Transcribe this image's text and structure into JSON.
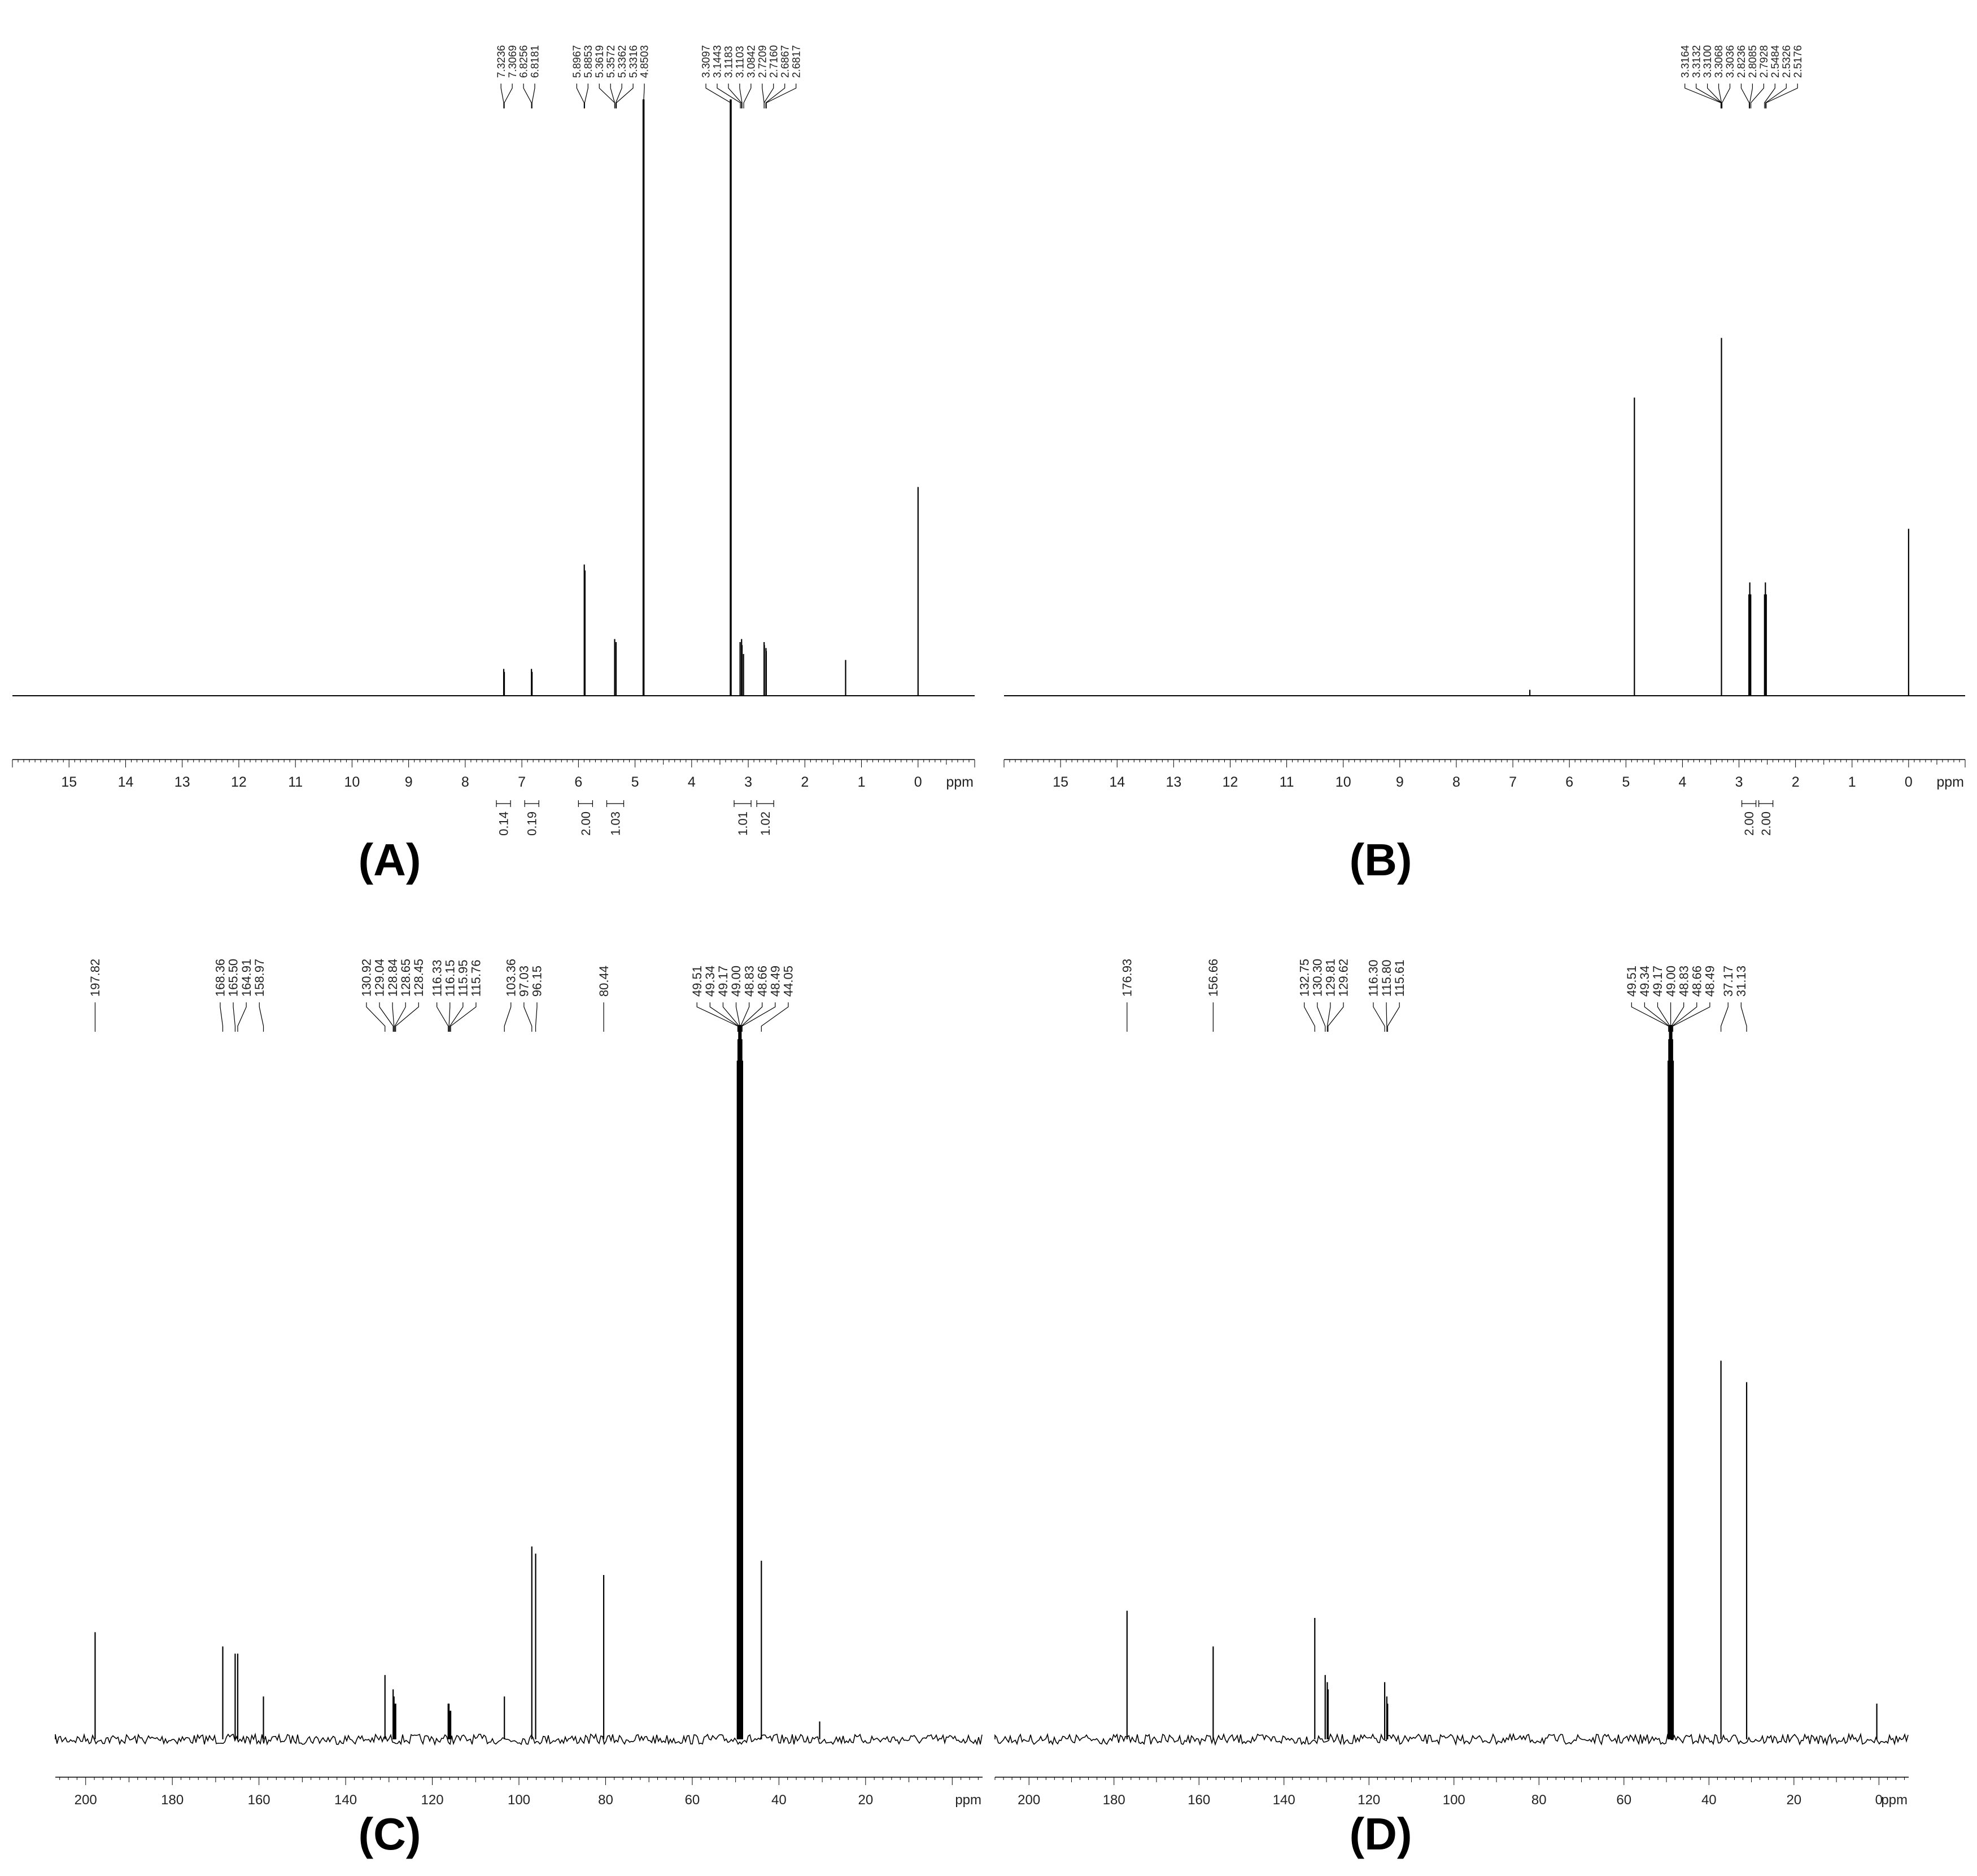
{
  "panels": [
    {
      "id": "A",
      "label": "(A)",
      "chart_data": {
        "type": "line",
        "nucleus": "1H",
        "xlabel": "ppm",
        "xlim": [
          16,
          -1
        ],
        "x_ticks": [
          15,
          14,
          13,
          12,
          11,
          10,
          9,
          8,
          7,
          6,
          5,
          4,
          3,
          2,
          1,
          0
        ],
        "peak_labels": [
          "7.3236",
          "7.3069",
          "6.8256",
          "6.8181",
          "5.8967",
          "5.8853",
          "5.3619",
          "5.3572",
          "5.3362",
          "5.3316",
          "4.8503",
          "3.3097",
          "3.1443",
          "3.1183",
          "3.1103",
          "3.0842",
          "2.7209",
          "2.7160",
          "2.6867",
          "2.6817"
        ],
        "label_targets": [
          7.32,
          7.31,
          6.83,
          6.82,
          5.9,
          5.89,
          5.36,
          5.36,
          5.34,
          5.33,
          4.85,
          3.31,
          3.14,
          3.12,
          3.11,
          3.08,
          2.72,
          2.72,
          2.69,
          2.68
        ],
        "peaks": [
          {
            "x": 7.32,
            "y": 0.045
          },
          {
            "x": 7.31,
            "y": 0.04
          },
          {
            "x": 6.83,
            "y": 0.045
          },
          {
            "x": 6.82,
            "y": 0.04
          },
          {
            "x": 5.897,
            "y": 0.22
          },
          {
            "x": 5.885,
            "y": 0.21
          },
          {
            "x": 5.36,
            "y": 0.095
          },
          {
            "x": 5.336,
            "y": 0.09
          },
          {
            "x": 4.85,
            "y": 1.0
          },
          {
            "x": 3.31,
            "y": 1.0
          },
          {
            "x": 3.144,
            "y": 0.09
          },
          {
            "x": 3.118,
            "y": 0.095
          },
          {
            "x": 3.11,
            "y": 0.085
          },
          {
            "x": 3.084,
            "y": 0.07
          },
          {
            "x": 2.72,
            "y": 0.09
          },
          {
            "x": 2.716,
            "y": 0.085
          },
          {
            "x": 2.687,
            "y": 0.08
          },
          {
            "x": 2.682,
            "y": 0.075
          },
          {
            "x": 1.28,
            "y": 0.06
          },
          {
            "x": 0.0,
            "y": 0.35
          }
        ],
        "integrals": [
          {
            "range": [
              7.45,
              7.2
            ],
            "value": "0.14"
          },
          {
            "range": [
              6.95,
              6.7
            ],
            "value": "0.19"
          },
          {
            "range": [
              6.0,
              5.75
            ],
            "value": "2.00"
          },
          {
            "range": [
              5.5,
              5.2
            ],
            "value": "1.03"
          },
          {
            "range": [
              3.25,
              2.95
            ],
            "value": "1.01"
          },
          {
            "range": [
              2.85,
              2.55
            ],
            "value": "1.02"
          }
        ]
      }
    },
    {
      "id": "B",
      "label": "(B)",
      "chart_data": {
        "type": "line",
        "nucleus": "1H",
        "xlabel": "ppm",
        "xlim": [
          16,
          -1
        ],
        "x_ticks": [
          15,
          14,
          13,
          12,
          11,
          10,
          9,
          8,
          7,
          6,
          5,
          4,
          3,
          2,
          1,
          0
        ],
        "peak_labels": [
          "3.3164",
          "3.3132",
          "3.3100",
          "3.3068",
          "3.3036",
          "2.8236",
          "2.8085",
          "2.7928",
          "2.5484",
          "2.5326",
          "2.5176"
        ],
        "label_targets": [
          3.32,
          3.31,
          3.31,
          3.31,
          3.3,
          2.82,
          2.81,
          2.79,
          2.55,
          2.53,
          2.52
        ],
        "peaks": [
          {
            "x": 6.7,
            "y": 0.01
          },
          {
            "x": 4.85,
            "y": 0.5
          },
          {
            "x": 3.31,
            "y": 0.6
          },
          {
            "x": 2.824,
            "y": 0.17
          },
          {
            "x": 2.809,
            "y": 0.19
          },
          {
            "x": 2.793,
            "y": 0.17
          },
          {
            "x": 2.548,
            "y": 0.17
          },
          {
            "x": 2.533,
            "y": 0.19
          },
          {
            "x": 2.518,
            "y": 0.17
          },
          {
            "x": 0.0,
            "y": 0.28
          }
        ],
        "integrals": [
          {
            "range": [
              2.95,
              2.7
            ],
            "value": "2.00"
          },
          {
            "range": [
              2.65,
              2.4
            ],
            "value": "2.00"
          }
        ]
      }
    },
    {
      "id": "C",
      "label": "(C)",
      "chart_data": {
        "type": "line",
        "nucleus": "13C",
        "xlabel": "ppm",
        "xlim": [
          207,
          -7
        ],
        "x_ticks": [
          200,
          180,
          160,
          140,
          120,
          100,
          80,
          60,
          40,
          20
        ],
        "peak_labels": [
          "197.82",
          "168.36",
          "165.50",
          "164.91",
          "158.97",
          "130.92",
          "129.04",
          "128.84",
          "128.65",
          "128.45",
          "116.33",
          "116.15",
          "115.95",
          "115.76",
          "103.36",
          "97.03",
          "96.15",
          "80.44",
          "49.51",
          "49.34",
          "49.17",
          "49.00",
          "48.83",
          "48.66",
          "48.49",
          "44.05"
        ],
        "label_targets": [
          197.82,
          168.36,
          165.5,
          164.91,
          158.97,
          130.92,
          129.04,
          128.84,
          128.65,
          128.45,
          116.33,
          116.15,
          115.95,
          115.76,
          103.36,
          97.03,
          96.15,
          80.44,
          49.51,
          49.34,
          49.17,
          49.0,
          48.83,
          48.66,
          48.49,
          44.05
        ],
        "peaks": [
          {
            "x": 197.82,
            "y": 0.15
          },
          {
            "x": 168.36,
            "y": 0.13
          },
          {
            "x": 165.5,
            "y": 0.12
          },
          {
            "x": 164.91,
            "y": 0.12
          },
          {
            "x": 158.97,
            "y": 0.06
          },
          {
            "x": 130.92,
            "y": 0.09
          },
          {
            "x": 129.04,
            "y": 0.07
          },
          {
            "x": 128.84,
            "y": 0.06
          },
          {
            "x": 128.65,
            "y": 0.05
          },
          {
            "x": 128.45,
            "y": 0.05
          },
          {
            "x": 116.33,
            "y": 0.05
          },
          {
            "x": 116.15,
            "y": 0.05
          },
          {
            "x": 115.95,
            "y": 0.04
          },
          {
            "x": 115.76,
            "y": 0.04
          },
          {
            "x": 103.36,
            "y": 0.06
          },
          {
            "x": 97.03,
            "y": 0.27
          },
          {
            "x": 96.15,
            "y": 0.26
          },
          {
            "x": 80.44,
            "y": 0.23
          },
          {
            "x": 49.51,
            "y": 0.95
          },
          {
            "x": 49.34,
            "y": 0.98
          },
          {
            "x": 49.17,
            "y": 1.0
          },
          {
            "x": 49.0,
            "y": 1.0
          },
          {
            "x": 48.83,
            "y": 1.0
          },
          {
            "x": 48.66,
            "y": 0.98
          },
          {
            "x": 48.49,
            "y": 0.95
          },
          {
            "x": 44.05,
            "y": 0.25
          },
          {
            "x": 30.6,
            "y": 0.025
          }
        ]
      }
    },
    {
      "id": "D",
      "label": "(D)",
      "chart_data": {
        "type": "line",
        "nucleus": "13C",
        "xlabel": "ppm",
        "xlim": [
          208,
          -7
        ],
        "x_ticks": [
          200,
          180,
          160,
          140,
          120,
          100,
          80,
          60,
          40,
          20,
          0
        ],
        "peak_labels": [
          "176.93",
          "156.66",
          "132.75",
          "130.30",
          "129.81",
          "129.62",
          "116.30",
          "115.80",
          "115.61",
          "49.51",
          "49.34",
          "49.17",
          "49.00",
          "48.83",
          "48.66",
          "48.49",
          "37.17",
          "31.13"
        ],
        "label_targets": [
          176.93,
          156.66,
          132.75,
          130.3,
          129.81,
          129.62,
          116.3,
          115.8,
          115.61,
          49.51,
          49.34,
          49.17,
          49.0,
          48.83,
          48.66,
          48.49,
          37.17,
          31.13
        ],
        "peaks": [
          {
            "x": 176.93,
            "y": 0.18
          },
          {
            "x": 156.66,
            "y": 0.13
          },
          {
            "x": 132.75,
            "y": 0.17
          },
          {
            "x": 130.3,
            "y": 0.09
          },
          {
            "x": 129.81,
            "y": 0.08
          },
          {
            "x": 129.62,
            "y": 0.07
          },
          {
            "x": 116.3,
            "y": 0.08
          },
          {
            "x": 115.8,
            "y": 0.06
          },
          {
            "x": 115.61,
            "y": 0.05
          },
          {
            "x": 49.51,
            "y": 0.95
          },
          {
            "x": 49.34,
            "y": 0.98
          },
          {
            "x": 49.17,
            "y": 1.0
          },
          {
            "x": 49.0,
            "y": 1.0
          },
          {
            "x": 48.83,
            "y": 1.0
          },
          {
            "x": 48.66,
            "y": 0.98
          },
          {
            "x": 48.49,
            "y": 0.95
          },
          {
            "x": 37.17,
            "y": 0.53
          },
          {
            "x": 31.13,
            "y": 0.5
          },
          {
            "x": 0.5,
            "y": 0.05
          }
        ]
      }
    }
  ]
}
